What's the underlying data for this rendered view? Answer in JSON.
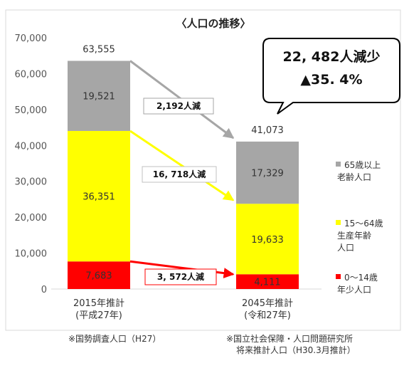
{
  "chart_data": {
    "type": "bar",
    "stacked": true,
    "title": "〈人口の推移〉",
    "categories": [
      {
        "line1": "2015年推計",
        "line2": "(平成27年)"
      },
      {
        "line1": "2045年推計",
        "line2": "(令和27年)"
      }
    ],
    "ylim": [
      0,
      70000
    ],
    "yticks": [
      "0",
      "10,000",
      "20,000",
      "30,000",
      "40,000",
      "50,000",
      "60,000",
      "70,000"
    ],
    "ytick_values": [
      0,
      10000,
      20000,
      30000,
      40000,
      50000,
      60000,
      70000
    ],
    "series": [
      {
        "lines": [
          "0〜14歳",
          "年少人口"
        ],
        "color": "#ff0000",
        "values": [
          7683,
          4111
        ],
        "labels": [
          "7,683",
          "4,111"
        ]
      },
      {
        "lines": [
          "15〜64歳",
          "生産年齢",
          "人口"
        ],
        "color": "#ffff00",
        "values": [
          36351,
          19633
        ],
        "labels": [
          "36,351",
          "19,633"
        ]
      },
      {
        "lines": [
          "65歳以上",
          "老齢人口"
        ],
        "color": "#a6a6a6",
        "values": [
          19521,
          17329
        ],
        "labels": [
          "19,521",
          "17,329"
        ]
      }
    ],
    "totals": [
      {
        "value": 63555,
        "label": "63,555"
      },
      {
        "value": 41073,
        "label": "41,073"
      }
    ],
    "change_annotations": [
      {
        "series_index": 2,
        "text": "2,192人減",
        "color": "#a6a6a6"
      },
      {
        "series_index": 1,
        "text": "16, 718人減",
        "color": "#ffff00"
      },
      {
        "series_index": 0,
        "text": "3, 572人減",
        "color": "#ff0000"
      }
    ],
    "callout": {
      "line1": "22, 482人減少",
      "line2": "▲35. 4%"
    },
    "sources": [
      [
        "※国勢調査人口（H27）"
      ],
      [
        "※国立社会保障・人口問題研究所",
        "将来推計人口（H30.3月推計）"
      ]
    ]
  }
}
